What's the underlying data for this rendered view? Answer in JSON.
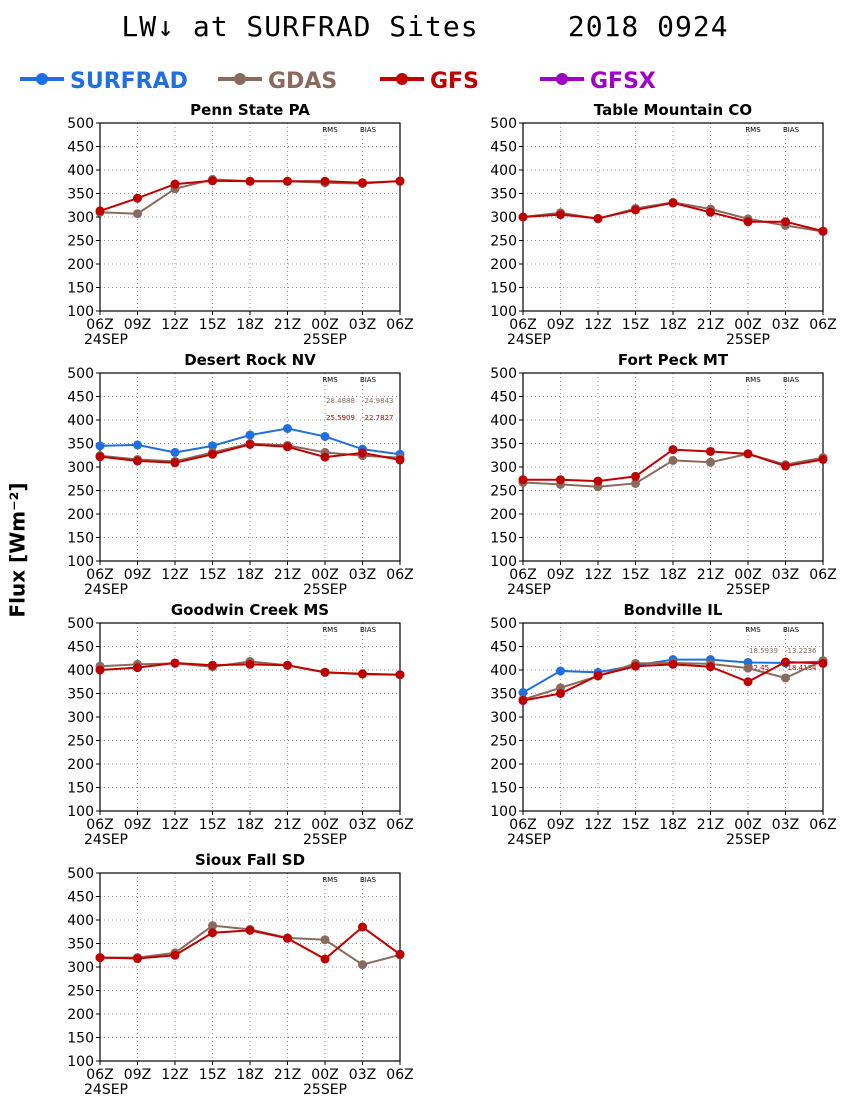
{
  "title": "LW↓ at SURFRAD Sites     2018 0924",
  "y_axis_label": "Flux [Wm⁻²]",
  "legend": [
    {
      "name": "SURFRAD",
      "color": "#1f6fe0"
    },
    {
      "name": "GDAS",
      "color": "#8b6a5e"
    },
    {
      "name": "GFS",
      "color": "#c00000"
    },
    {
      "name": "GFSX",
      "color": "#a000c8"
    }
  ],
  "stats_headers": {
    "rms": "RMS",
    "bias": "BIAS"
  },
  "chart_data": [
    {
      "type": "line",
      "title": "Penn State PA",
      "categories": [
        "06Z",
        "09Z",
        "12Z",
        "15Z",
        "18Z",
        "21Z",
        "00Z",
        "03Z",
        "06Z"
      ],
      "date_labels": [
        "24SEP",
        "25SEP"
      ],
      "ylim": [
        100,
        500
      ],
      "yticks": [
        100,
        150,
        200,
        250,
        300,
        350,
        400,
        450,
        500
      ],
      "grid": true,
      "series": [
        {
          "name": "GDAS",
          "values": [
            310,
            307,
            360,
            380,
            376,
            376,
            373,
            371,
            377
          ]
        },
        {
          "name": "GFS",
          "values": [
            313,
            340,
            370,
            377,
            376,
            376,
            376,
            373,
            376
          ]
        }
      ],
      "stats": []
    },
    {
      "type": "line",
      "title": "Table Mountain CO",
      "categories": [
        "06Z",
        "09Z",
        "12Z",
        "15Z",
        "18Z",
        "21Z",
        "00Z",
        "03Z",
        "06Z"
      ],
      "date_labels": [
        "24SEP",
        "25SEP"
      ],
      "ylim": [
        100,
        500
      ],
      "yticks": [
        100,
        150,
        200,
        250,
        300,
        350,
        400,
        450,
        500
      ],
      "grid": true,
      "series": [
        {
          "name": "GDAS",
          "values": [
            300,
            309,
            296,
            318,
            331,
            317,
            296,
            282,
            269
          ]
        },
        {
          "name": "GFS",
          "values": [
            300,
            305,
            297,
            315,
            330,
            310,
            290,
            290,
            270
          ]
        }
      ],
      "stats": []
    },
    {
      "type": "line",
      "title": "Desert Rock NV",
      "categories": [
        "06Z",
        "09Z",
        "12Z",
        "15Z",
        "18Z",
        "21Z",
        "00Z",
        "03Z",
        "06Z"
      ],
      "date_labels": [
        "24SEP",
        "25SEP"
      ],
      "ylim": [
        100,
        500
      ],
      "yticks": [
        100,
        150,
        200,
        250,
        300,
        350,
        400,
        450,
        500
      ],
      "grid": true,
      "series": [
        {
          "name": "SURFRAD",
          "values": [
            345,
            347,
            331,
            345,
            368,
            382,
            365,
            338,
            327
          ]
        },
        {
          "name": "GDAS",
          "values": [
            324,
            316,
            312,
            331,
            350,
            346,
            331,
            324,
            320
          ]
        },
        {
          "name": "GFS",
          "values": [
            322,
            313,
            309,
            327,
            348,
            343,
            321,
            330,
            315
          ]
        }
      ],
      "stats": [
        {
          "rms": "28.4888",
          "bias": "-24.9843",
          "color": "#8b6a5e"
        },
        {
          "rms": "25.5909",
          "bias": "-22.7827",
          "color": "#c00000"
        }
      ]
    },
    {
      "type": "line",
      "title": "Fort Peck MT",
      "categories": [
        "06Z",
        "09Z",
        "12Z",
        "15Z",
        "18Z",
        "21Z",
        "00Z",
        "03Z",
        "06Z"
      ],
      "date_labels": [
        "24SEP",
        "25SEP"
      ],
      "ylim": [
        100,
        500
      ],
      "yticks": [
        100,
        150,
        200,
        250,
        300,
        350,
        400,
        450,
        500
      ],
      "grid": true,
      "series": [
        {
          "name": "GDAS",
          "values": [
            267,
            263,
            258,
            265,
            314,
            310,
            328,
            305,
            320
          ]
        },
        {
          "name": "GFS",
          "values": [
            273,
            273,
            270,
            280,
            337,
            333,
            328,
            302,
            316
          ]
        }
      ],
      "stats": []
    },
    {
      "type": "line",
      "title": "Goodwin Creek MS",
      "categories": [
        "06Z",
        "09Z",
        "12Z",
        "15Z",
        "18Z",
        "21Z",
        "00Z",
        "03Z",
        "06Z"
      ],
      "date_labels": [
        "24SEP",
        "25SEP"
      ],
      "ylim": [
        100,
        500
      ],
      "yticks": [
        100,
        150,
        200,
        250,
        300,
        350,
        400,
        450,
        500
      ],
      "grid": true,
      "series": [
        {
          "name": "GDAS",
          "values": [
            408,
            412,
            414,
            407,
            418,
            410,
            395,
            391,
            390
          ]
        },
        {
          "name": "GFS",
          "values": [
            400,
            405,
            415,
            410,
            412,
            410,
            395,
            392,
            390
          ]
        }
      ],
      "stats": []
    },
    {
      "type": "line",
      "title": "Bondville IL",
      "categories": [
        "06Z",
        "09Z",
        "12Z",
        "15Z",
        "18Z",
        "21Z",
        "00Z",
        "03Z",
        "06Z"
      ],
      "date_labels": [
        "24SEP",
        "25SEP"
      ],
      "ylim": [
        100,
        500
      ],
      "yticks": [
        100,
        150,
        200,
        250,
        300,
        350,
        400,
        450,
        500
      ],
      "grid": true,
      "series": [
        {
          "name": "SURFRAD",
          "values": [
            352,
            398,
            395,
            410,
            422,
            422,
            416,
            415,
            418
          ]
        },
        {
          "name": "GDAS",
          "values": [
            337,
            362,
            387,
            414,
            415,
            413,
            404,
            383,
            420
          ]
        },
        {
          "name": "GFS",
          "values": [
            335,
            350,
            388,
            408,
            412,
            407,
            375,
            417,
            414
          ]
        }
      ],
      "stats": [
        {
          "rms": "18.5939",
          "bias": "-13.2236",
          "color": "#8b6a5e"
        },
        {
          "rms": "22.45",
          "bias": "-18.4134",
          "color": "#c00000"
        }
      ]
    },
    {
      "type": "line",
      "title": "Sioux Fall SD",
      "categories": [
        "06Z",
        "09Z",
        "12Z",
        "15Z",
        "18Z",
        "21Z",
        "00Z",
        "03Z",
        "06Z"
      ],
      "date_labels": [
        "24SEP",
        "25SEP"
      ],
      "ylim": [
        100,
        500
      ],
      "yticks": [
        100,
        150,
        200,
        250,
        300,
        350,
        400,
        450,
        500
      ],
      "grid": true,
      "series": [
        {
          "name": "GDAS",
          "values": [
            320,
            320,
            330,
            388,
            380,
            362,
            358,
            305,
            326
          ]
        },
        {
          "name": "GFS",
          "values": [
            320,
            318,
            325,
            373,
            378,
            361,
            317,
            385,
            327
          ]
        }
      ],
      "stats": []
    }
  ]
}
